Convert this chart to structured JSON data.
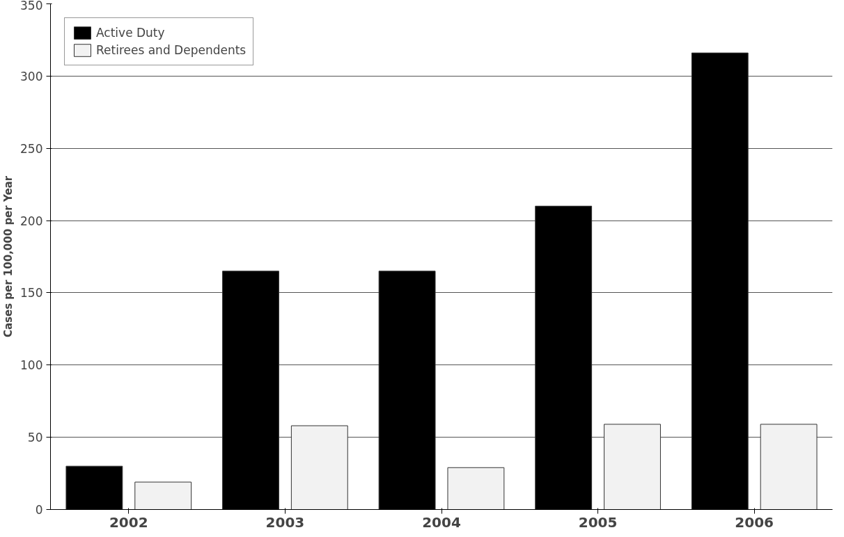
{
  "chart_data": {
    "type": "bar",
    "ylabel": "Cases per 100,000 per Year",
    "categories": [
      "2002",
      "2003",
      "2004",
      "2005",
      "2006"
    ],
    "series": [
      {
        "name": "Active Duty",
        "color": "#000000",
        "values": [
          30,
          165,
          165,
          210,
          316
        ]
      },
      {
        "name": "Retirees and Dependents",
        "color": "#f2f2f2",
        "values": [
          19,
          58,
          29,
          59,
          59
        ]
      }
    ],
    "ylim": [
      0,
      350
    ],
    "yticks": [
      0,
      50,
      100,
      150,
      200,
      250,
      300,
      350
    ],
    "grid": "y",
    "legend": "top left"
  }
}
